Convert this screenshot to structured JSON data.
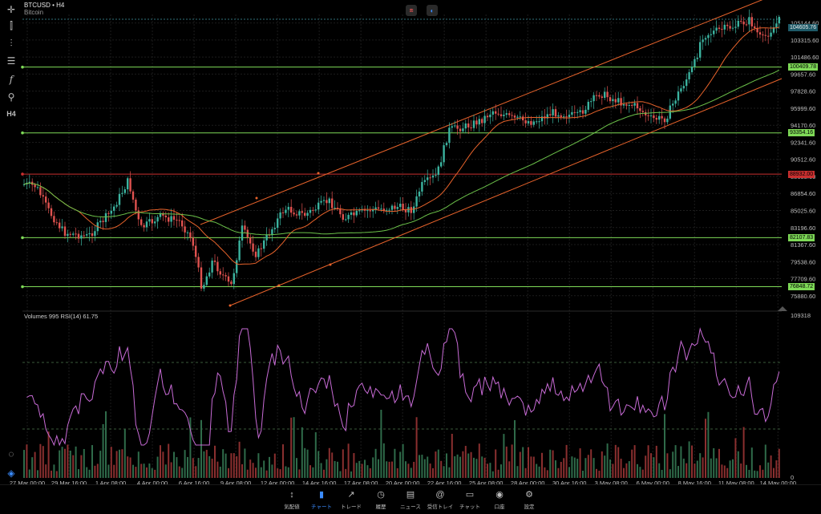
{
  "header": {
    "symbol": "BTCUSD • H4",
    "name": "Bitcoin"
  },
  "price_axis": [
    "105144.60",
    "103315.60",
    "101486.60",
    "99657.60",
    "97828.60",
    "95999.60",
    "94170.60",
    "92341.60",
    "90512.60",
    "88683.60",
    "86854.60",
    "85025.60",
    "83196.60",
    "81367.60",
    "79538.60",
    "77709.60",
    "75880.60"
  ],
  "price_range": [
    74660,
    106060
  ],
  "price_tags": [
    {
      "value": "104605.76",
      "price": 104605.76,
      "bg": "#1e5a68",
      "fg": "#e8e8e8"
    },
    {
      "value": "100409.78",
      "price": 100409.78,
      "bg": "#7ed957",
      "fg": "#000000"
    },
    {
      "value": "93354.16",
      "price": 93354.16,
      "bg": "#7ed957",
      "fg": "#000000"
    },
    {
      "value": "88932.00",
      "price": 88932.0,
      "bg": "#c92f2f",
      "fg": "#000000"
    },
    {
      "value": "82107.83",
      "price": 82107.83,
      "bg": "#7ed957",
      "fg": "#000000"
    },
    {
      "value": "76848.72",
      "price": 76848.72,
      "bg": "#7ed957",
      "fg": "#000000"
    }
  ],
  "time_axis": [
    "27 Mar 00:00",
    "29 Mar 16:00",
    "1 Apr 08:00",
    "4 Apr 00:00",
    "6 Apr 16:00",
    "9 Apr 08:00",
    "12 Apr 00:00",
    "14 Apr 16:00",
    "17 Apr 08:00",
    "20 Apr 00:00",
    "22 Apr 16:00",
    "25 Apr 08:00",
    "28 Apr 00:00",
    "30 Apr 16:00",
    "3 May 08:00",
    "6 May 00:00",
    "8 May 16:00",
    "11 May 08:00",
    "14 May 00:00"
  ],
  "indicator": {
    "label": "Volumes 995 RSI(14) 61.75",
    "axis_top": "109318",
    "axis_bottom": "0"
  },
  "nav": [
    {
      "icon": "↕",
      "label": "気配値"
    },
    {
      "icon": "▮",
      "label": "チャート"
    },
    {
      "icon": "↗",
      "label": "トレード"
    },
    {
      "icon": "◷",
      "label": "履歴"
    },
    {
      "icon": "▤",
      "label": "ニュース"
    },
    {
      "icon": "@",
      "label": "受信トレイ"
    },
    {
      "icon": "▭",
      "label": "チャット"
    },
    {
      "icon": "◉",
      "label": "口座"
    },
    {
      "icon": "⚙",
      "label": "設定"
    }
  ],
  "colors": {
    "up": "#3bb39f",
    "down": "#e0524f",
    "ma_fast": "#e8632b",
    "ma_slow": "#6cc24a",
    "rsi": "#c86bd6",
    "active": "#3b8cff"
  }
}
